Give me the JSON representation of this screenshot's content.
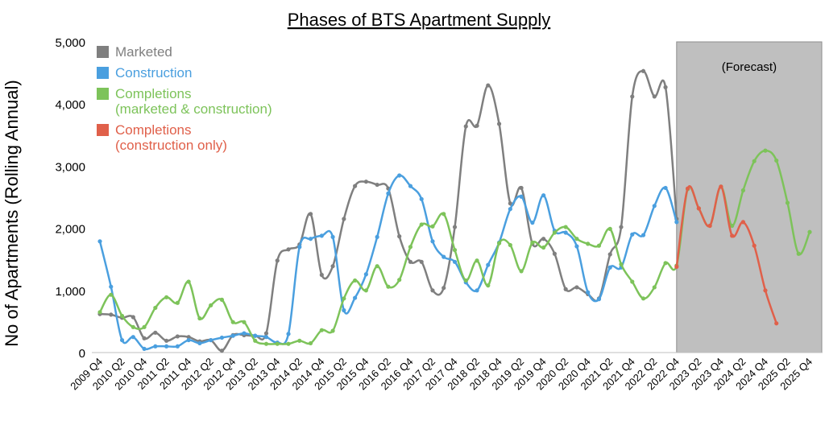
{
  "chart_data": {
    "type": "line",
    "title": "Phases of BTS Apartment Supply",
    "y_label": "No of Apartments (Rolling Annual)",
    "annotation": "(Forecast)",
    "categories": [
      "2009 Q4",
      null,
      "2010 Q2",
      null,
      "2010 Q4",
      null,
      "2011 Q2",
      null,
      "2011 Q4",
      null,
      "2012 Q2",
      null,
      "2012 Q4",
      null,
      "2013 Q2",
      null,
      "2013 Q4",
      null,
      "2014 Q2",
      null,
      "2014 Q4",
      null,
      "2015 Q2",
      null,
      "2015 Q4",
      null,
      "2016 Q2",
      null,
      "2016 Q4",
      null,
      "2017 Q2",
      null,
      "2017 Q4",
      null,
      "2018 Q2",
      null,
      "2018 Q4",
      null,
      "2019 Q2",
      null,
      "2019 Q4",
      null,
      "2020 Q2",
      null,
      "2020 Q4",
      null,
      "2021 Q2",
      null,
      "2021 Q4",
      null,
      "2022 Q2",
      null,
      "2022 Q4",
      null,
      "2023 Q2",
      null,
      "2023 Q4",
      null,
      "2024 Q2",
      null,
      "2024 Q4",
      null,
      "2025 Q2",
      null,
      "2025 Q4"
    ],
    "series": [
      {
        "name": "Marketed",
        "color": "#7f7f7f",
        "values": [
          620,
          610,
          560,
          570,
          230,
          320,
          190,
          260,
          250,
          180,
          200,
          30,
          280,
          280,
          270,
          310,
          1480,
          1660,
          1740,
          2230,
          1250,
          1390,
          2150,
          2680,
          2750,
          2700,
          2640,
          1870,
          1460,
          1460,
          1000,
          1040,
          2020,
          3640,
          3650,
          4300,
          3680,
          2400,
          2650,
          1750,
          1830,
          1590,
          1020,
          1050,
          940,
          870,
          1580,
          2020,
          4120,
          4530,
          4120,
          4270,
          2150,
          null,
          null,
          null,
          null,
          null,
          null,
          null,
          null,
          null,
          null,
          null,
          null
        ]
      },
      {
        "name": "Construction",
        "color": "#4a9fdf",
        "values": [
          1790,
          1060,
          200,
          250,
          60,
          100,
          100,
          100,
          200,
          150,
          200,
          240,
          270,
          310,
          270,
          250,
          160,
          300,
          1700,
          1830,
          1880,
          1860,
          680,
          880,
          1260,
          1860,
          2560,
          2850,
          2680,
          2470,
          1790,
          1540,
          1460,
          1130,
          1000,
          1410,
          1770,
          2310,
          2510,
          2090,
          2530,
          1960,
          1930,
          1710,
          970,
          860,
          1370,
          1370,
          1900,
          1890,
          2360,
          2650,
          2100,
          null,
          null,
          null,
          null,
          null,
          null,
          null,
          null,
          null,
          null,
          null,
          null
        ]
      },
      {
        "name": "Completions\n(marketed & construction)",
        "color": "#7dc35a",
        "values": [
          650,
          930,
          590,
          410,
          410,
          720,
          890,
          800,
          1140,
          550,
          760,
          850,
          490,
          490,
          190,
          140,
          140,
          140,
          190,
          150,
          360,
          350,
          870,
          1160,
          1000,
          1390,
          1060,
          1170,
          1700,
          2060,
          2030,
          2230,
          1650,
          1160,
          1480,
          1080,
          1760,
          1730,
          1310,
          1770,
          1690,
          1930,
          2020,
          1830,
          1750,
          1720,
          1990,
          1420,
          1140,
          870,
          1050,
          1440,
          1400,
          2630,
          2320,
          2040,
          2670,
          2040,
          2610,
          3080,
          3250,
          3090,
          2410,
          1590,
          1940
        ]
      },
      {
        "name": "Completions\n(construction only)",
        "color": "#e0604a",
        "values": [
          null,
          null,
          null,
          null,
          null,
          null,
          null,
          null,
          null,
          null,
          null,
          null,
          null,
          null,
          null,
          null,
          null,
          null,
          null,
          null,
          null,
          null,
          null,
          null,
          null,
          null,
          null,
          null,
          null,
          null,
          null,
          null,
          null,
          null,
          null,
          null,
          null,
          null,
          null,
          null,
          null,
          null,
          null,
          null,
          null,
          null,
          null,
          null,
          null,
          null,
          null,
          null,
          1380,
          2640,
          2320,
          2040,
          2670,
          1880,
          2100,
          1720,
          1000,
          470,
          null,
          null,
          null
        ]
      }
    ],
    "ylim": [
      0,
      5000
    ],
    "yticks": [
      0,
      {
        "value": 1000,
        "label": "1,000"
      },
      {
        "value": 2000,
        "label": "2,000"
      },
      {
        "value": 3000,
        "label": "3,000"
      },
      {
        "value": 4000,
        "label": "4,000"
      },
      {
        "value": 5000,
        "label": "5,000"
      }
    ],
    "grid": false,
    "legend": "upper left"
  }
}
